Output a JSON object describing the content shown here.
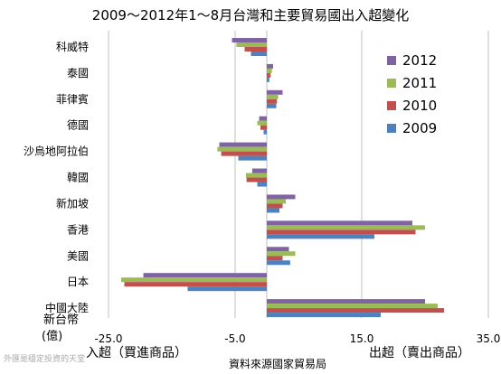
{
  "chart_data": {
    "type": "bar",
    "orientation": "horizontal",
    "title": "2009～2012年1～8月台灣和主要貿易國出入超變化",
    "unit_label_line1": "新台幣",
    "unit_label_line2": "(億)",
    "categories": [
      "科威特",
      "泰國",
      "菲律賓",
      "德國",
      "沙烏地阿拉伯",
      "韓國",
      "新加坡",
      "香港",
      "美國",
      "日本",
      "中國大陸"
    ],
    "series": [
      {
        "name": "2012",
        "color": "#8064A2",
        "values": [
          -5.5,
          1.0,
          2.5,
          -1.2,
          -7.5,
          -2.3,
          4.5,
          23.0,
          3.5,
          -19.5,
          25.0
        ]
      },
      {
        "name": "2011",
        "color": "#9BBB59",
        "values": [
          -4.8,
          0.8,
          1.8,
          -1.5,
          -7.8,
          -3.3,
          3.0,
          25.0,
          4.5,
          -23.0,
          27.0
        ]
      },
      {
        "name": "2010",
        "color": "#C0504D",
        "values": [
          -3.5,
          0.6,
          1.6,
          -1.0,
          -7.2,
          -3.2,
          2.5,
          23.5,
          2.5,
          -22.5,
          28.0
        ]
      },
      {
        "name": "2009",
        "color": "#4F81BD",
        "values": [
          -2.5,
          0.4,
          1.5,
          -0.5,
          -4.5,
          -1.5,
          2.0,
          17.0,
          3.7,
          -12.5,
          18.0
        ]
      }
    ],
    "xlim": [
      -25,
      35
    ],
    "xticks": [
      -25,
      -5,
      15,
      35
    ],
    "xtick_labels": [
      "-25.0",
      "-5.0",
      "15.0",
      "35.0"
    ],
    "grid": "vertical",
    "legend_position": "right",
    "left_side_label": "入超（買進商品）",
    "right_side_label": "出超（賣出商品）",
    "source": "資料來源國家貿易局",
    "watermark": "外匯是穩定投資的天堂"
  }
}
